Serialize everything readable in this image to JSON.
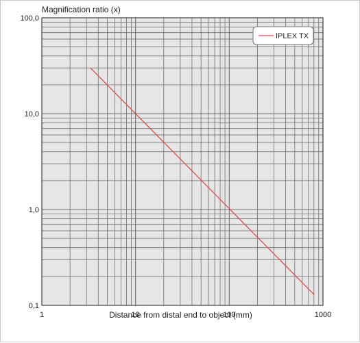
{
  "chart_data": {
    "type": "line",
    "title": "",
    "ylabel": "Magnification ratio (x)",
    "xlabel": "Distance from distal end to object (mm)",
    "x_scale": "log",
    "y_scale": "log",
    "xlim": [
      1,
      1000
    ],
    "ylim": [
      0.1,
      100
    ],
    "x_ticks": [
      "1",
      "10",
      "100",
      "1000"
    ],
    "y_ticks": [
      "0,1",
      "1,0",
      "10,0",
      "100,0"
    ],
    "grid": true,
    "legend_position": "top-right",
    "series": [
      {
        "name": "IPLEX TX",
        "color": "#e8474b",
        "x": [
          3.3,
          800
        ],
        "y": [
          30,
          0.13
        ]
      }
    ]
  }
}
